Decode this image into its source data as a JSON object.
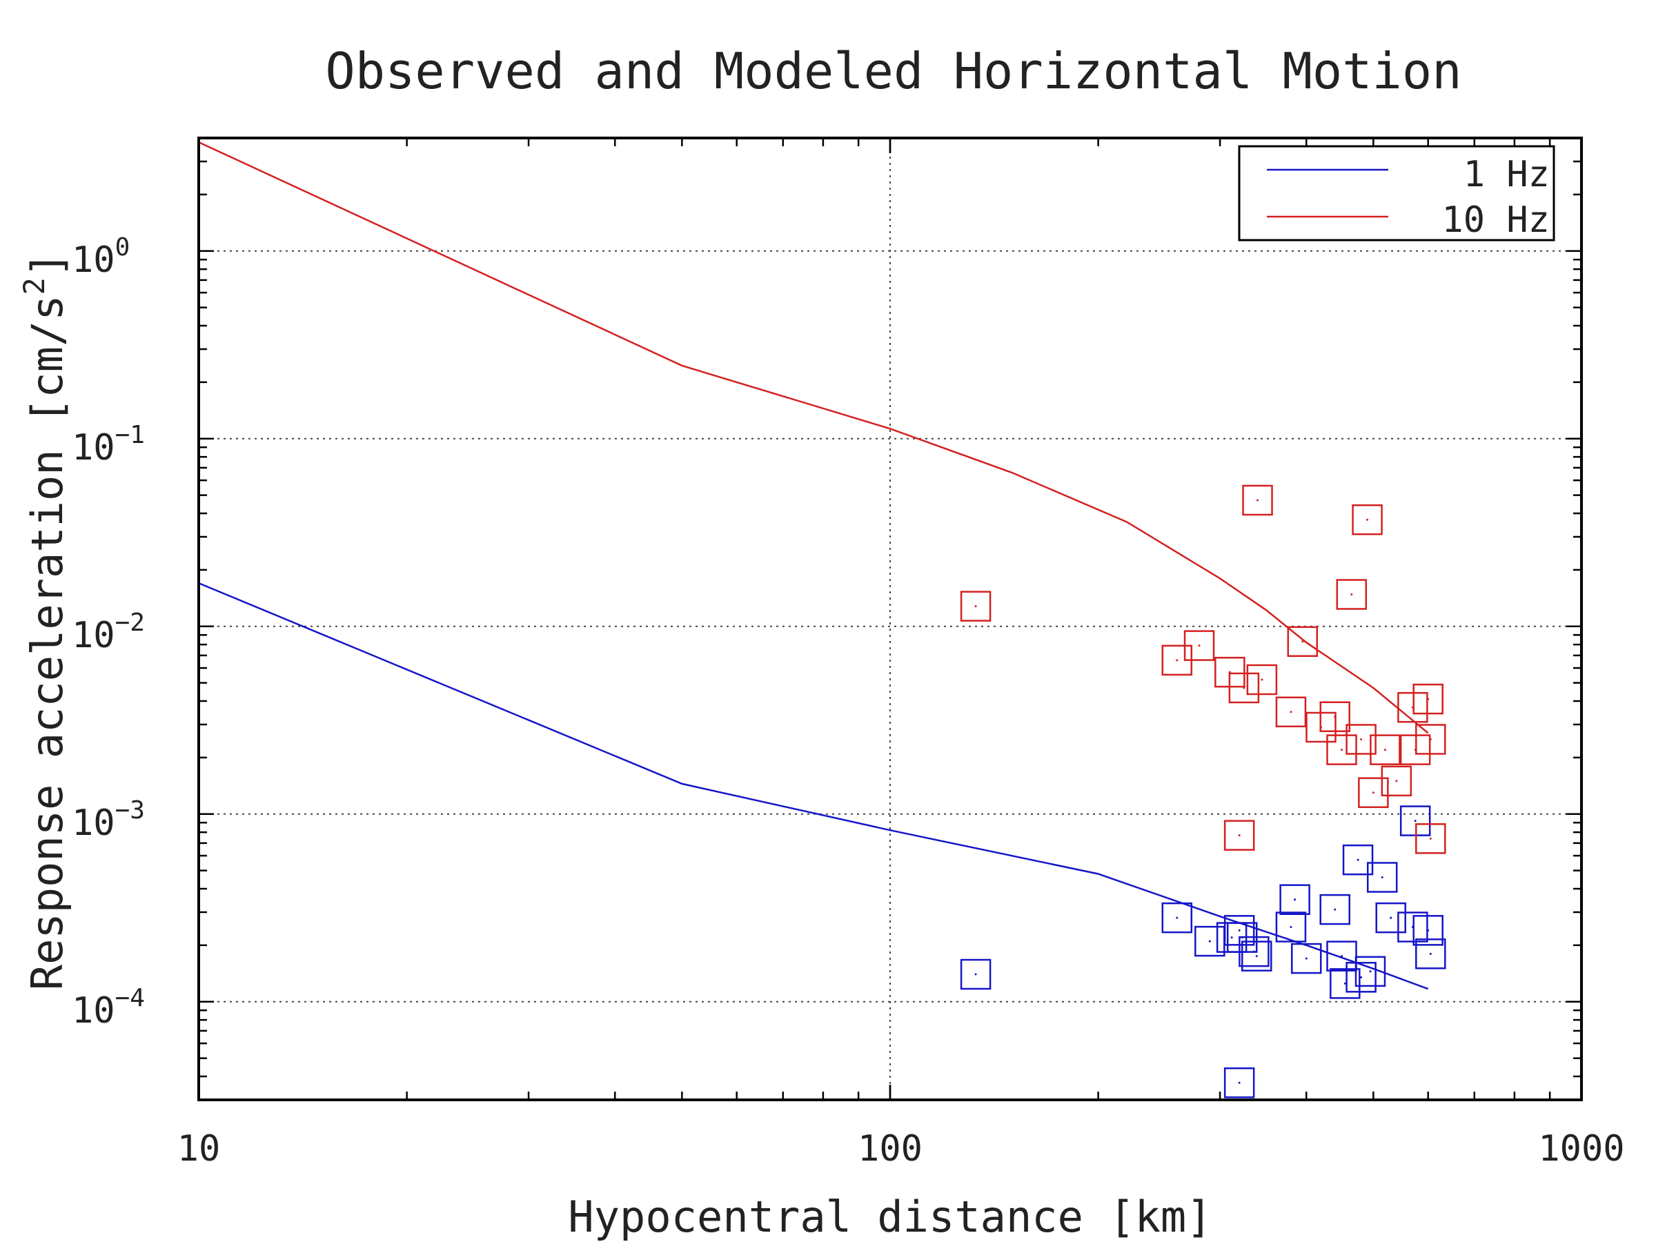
{
  "chart_data": {
    "type": "scatter",
    "title": "Observed and Modeled Horizontal Motion",
    "xlabel": "Hypocentral distance [km]",
    "ylabel": "Response acceleration [cm/s^2]",
    "ylabel_main": "Response acceleration [cm/s",
    "ylabel_sup": "2",
    "ylabel_end": "]",
    "x_scale": "log",
    "y_scale": "log",
    "xlim": [
      10,
      1000
    ],
    "ylim": [
      3e-05,
      4
    ],
    "grid": true,
    "legend_position": "top-right",
    "x_ticks": [
      {
        "value": 10,
        "label": "10"
      },
      {
        "value": 100,
        "label": "100"
      },
      {
        "value": 1000,
        "label": "1000"
      }
    ],
    "y_ticks": [
      {
        "value": 1,
        "base": "10",
        "exp": "0"
      },
      {
        "value": 0.1,
        "base": "10",
        "exp": "−1"
      },
      {
        "value": 0.01,
        "base": "10",
        "exp": "−2"
      },
      {
        "value": 0.001,
        "base": "10",
        "exp": "−3"
      },
      {
        "value": 0.0001,
        "base": "10",
        "exp": "−4"
      }
    ],
    "series": [
      {
        "name": "1 Hz",
        "color": "#1515c8",
        "model_line": {
          "x": [
            10,
            50,
            100,
            200,
            300,
            400,
            500,
            600
          ],
          "y": [
            0.017,
            0.00145,
            0.00082,
            0.00048,
            0.000285,
            0.0002,
            0.00015,
            0.000117
          ]
        },
        "observations": {
          "x": [
            133,
            260,
            290,
            312,
            320,
            323,
            336,
            339,
            380,
            385,
            400,
            440,
            450,
            455,
            475,
            480,
            495,
            515,
            530,
            570,
            575,
            600,
            605,
            320
          ],
          "y": [
            0.00014,
            0.00028,
            0.00021,
            0.00022,
            0.00024,
            0.00022,
            0.000185,
            0.000175,
            0.00025,
            0.00035,
            0.00017,
            0.00031,
            0.000175,
            0.000125,
            0.00057,
            0.000135,
            0.000145,
            0.00046,
            0.00028,
            0.00025,
            0.00092,
            0.00024,
            0.00018,
            3.7e-05
          ]
        }
      },
      {
        "name": "10 Hz",
        "color": "#d42020",
        "model_line": {
          "x": [
            10,
            50,
            100,
            150,
            220,
            300,
            350,
            400,
            500,
            600
          ],
          "y": [
            3.8,
            0.245,
            0.113,
            0.066,
            0.036,
            0.018,
            0.0122,
            0.0082,
            0.0047,
            0.0027
          ]
        },
        "observations": {
          "x": [
            133,
            260,
            280,
            310,
            320,
            325,
            340,
            345,
            380,
            395,
            420,
            440,
            450,
            465,
            480,
            490,
            500,
            520,
            540,
            570,
            575,
            600,
            605
          ],
          "y": [
            0.0128,
            0.0066,
            0.0079,
            0.0057,
            0.00077,
            0.0047,
            0.047,
            0.0052,
            0.0035,
            0.0083,
            0.0029,
            0.0033,
            0.0022,
            0.0148,
            0.0025,
            0.037,
            0.0013,
            0.0022,
            0.0015,
            0.0037,
            0.0022,
            0.0041,
            0.0025
          ]
        }
      }
    ],
    "extra_observations": [
      {
        "series": "10 Hz",
        "x": 605,
        "y": 0.00074
      }
    ]
  }
}
